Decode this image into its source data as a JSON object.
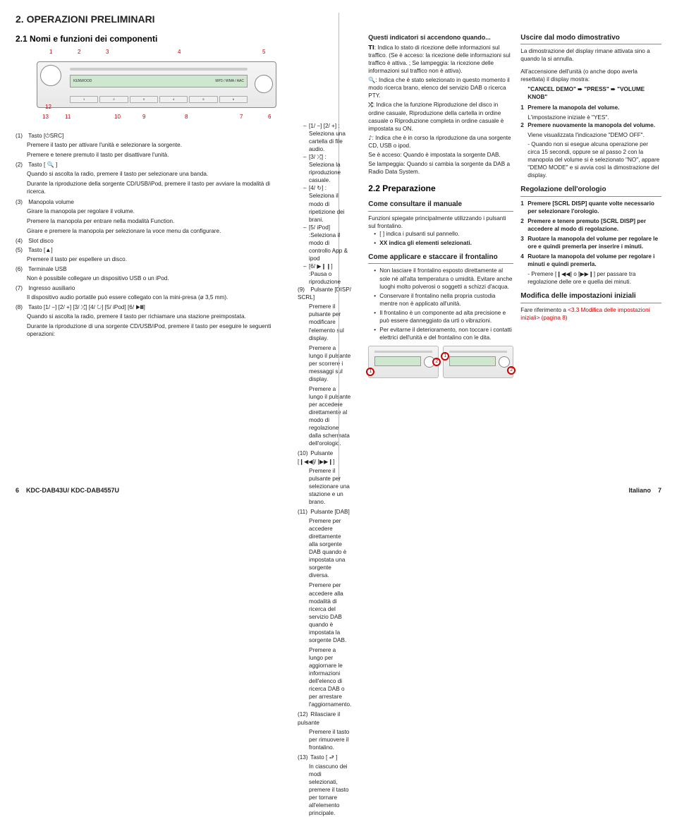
{
  "section_title": "2. OPERAZIONI PRELIMINARI",
  "sub1": "2.1 Nomi e funzioni dei componenti",
  "callouts_top": [
    "1",
    "2",
    "3",
    "4",
    "5"
  ],
  "callouts_bottom": [
    "13",
    "12",
    "11",
    "10",
    "9",
    "8",
    "7",
    "6"
  ],
  "display_left": "KENWOOD",
  "display_right": "MP3 / WMA / AAC",
  "buttons": [
    "1",
    "2",
    "3",
    "4",
    "5",
    "6"
  ],
  "items": [
    {
      "n": "(1)",
      "k": "Tasto [⏻SRC]",
      "d": [
        "Premere il tasto per attivare l'unità e selezionare la sorgente.",
        "Premere e tenere premuto il tasto per disattivare l'unità."
      ]
    },
    {
      "n": "(2)",
      "k": "Tasto [ 🔍 ]",
      "d": [
        "Quando si ascolta la radio, premere il tasto per selezionare una banda.",
        "Durante la riproduzione della sorgente CD/USB/iPod, premere il tasto per avviare la modalità di ricerca."
      ]
    },
    {
      "n": "(3)",
      "k": "Manopola volume",
      "d": [
        "Girare la manopola per regolare il volume.",
        "Premere la manopola per entrare nella modalità Function.",
        "Girare e premere la manopola per selezionare la voce menu da configurare."
      ]
    },
    {
      "n": "(4)",
      "k": "Slot disco",
      "d": []
    },
    {
      "n": "(5)",
      "k": "Tasto [▲]",
      "d": [
        "Premere il tasto per espellere un disco."
      ]
    },
    {
      "n": "(6)",
      "k": "Terminale USB",
      "d": [
        "Non è possibile collegare un dispositivo USB o un iPod."
      ]
    },
    {
      "n": "(7)",
      "k": "Ingresso ausiliario",
      "d": [
        "Il dispositivo audio portatile può essere collegato con la mini-presa (ø 3,5 mm)."
      ]
    },
    {
      "n": "(8)",
      "k": "Tasto [1/ −] [2/ +] [3/ ⤮] [4/ ↻] [5/ iPod] [6/ ▶❙❙]",
      "d": [
        "Quando si ascolta la radio, premere il tasto per richiamare una stazione preimpostata.",
        "Durante la riproduzione di una sorgente CD/USB/iPod, premere il tasto per eseguire le seguenti operazioni:"
      ]
    }
  ],
  "ops8": [
    "[1/ −] [2/ +] : Seleziona una cartella di file audio.",
    "[3/ ⤮] : Seleziona la riproduzione casuale.",
    "[4/ ↻] : Seleziona il modo di ripetizione dei brani.",
    "[5/ iPod] :Seleziona il modo di controllo App & ipod",
    "[6/ ▶❙❙] :Pausa o riproduzione"
  ],
  "items2": [
    {
      "n": "(9)",
      "k": "Pulsante [DISP/ SCRL]",
      "d": [
        "Premere il pulsante per modificare l'elemento sul display.",
        "Premere a lungo il pulsante per scorrere i messaggi sul display.",
        "Premere a lungo il pulsante per accedere direttamente al modo di regolazione dalla schermata dell'orologio."
      ]
    },
    {
      "n": "(10)",
      "k": "Pulsante [❙◀◀]/ [▶▶❙]",
      "d": [
        "Premere il pulsante per selezionare una stazione e un brano."
      ]
    },
    {
      "n": "(11)",
      "k": "Pulsante [DAB]",
      "d": [
        "Premere per accedere direttamente alla sorgente DAB quando è impostata una sorgente diversa.",
        "Premere per accedere alla modalità di ricerca del servizio DAB quando è impostata la sorgente DAB.",
        "Premere a lungo per aggiornare le informazioni dell'elenco di ricerca DAB o per arrestare l'aggiornamento."
      ]
    },
    {
      "n": "(12)",
      "k": "Rilasciare il pulsante",
      "d": [
        "Premere il tasto per rimuovere il frontalino."
      ]
    },
    {
      "n": "(13)",
      "k": "Tasto [ ⮐ ]",
      "d": [
        "In ciascuno dei modi selezionati, premere il tasto per tornare all'elemento principale."
      ]
    }
  ],
  "ind_title": "Questi indicatori si accendono quando...",
  "ind": [
    {
      "s": "TI",
      "t": ": Indica lo stato di ricezione delle informazioni sul traffico. (Se è acceso: la ricezione delle informazioni sul traffico è attiva. ; Se lampeggia: la ricezione delle informazioni sul traffico non è attiva)."
    },
    {
      "s": "🔍",
      "t": ": Indica che è stato selezionato in questo momento il modo ricerca brano, elenco del servizio DAB o ricerca PTY."
    },
    {
      "s": "⤮",
      "t": ": Indica che la funzione Riproduzione del disco in ordine casuale, Riproduzione della cartella in ordine casuale o Riproduzione completa in ordine casuale è impostata su ON."
    },
    {
      "s": "♪",
      "t": ": Indica che è in corso la riproduzione da una sorgente CD, USB o ipod."
    },
    {
      "s": "",
      "t": "Se è acceso: Quando è impostata la sorgente DAB."
    },
    {
      "s": "",
      "t": "Se lampeggia: Quando si cambia la sorgente da DAB a Radio Data System."
    }
  ],
  "prep_title": "2.2 Preparazione",
  "man_title": "Come consultare il manuale",
  "man_text": "Funzioni spiegate principalmente utilizzando i pulsanti sul frontalino.",
  "man_b1": "[ ] indica i pulsanti sul pannello.",
  "man_b2": "XX indica gli elementi selezionati.",
  "front_title": "Come applicare e staccare il frontalino",
  "front_b": [
    "Non lasciare il frontalino esposto direttamente al sole né all'alta temperatura o umidità. Evitare anche luoghi molto polverosi o soggetti a schizzi d'acqua.",
    "Conservare il frontalino nella propria custodia mentre non è applicato all'unità.",
    "Il frontalino è un componente ad alta precisione e può essere danneggiato da urti o vibrazioni.",
    "Per evitarne il deterioramento, non toccare i contatti elettrici dell'unità e del frontalino con le dita."
  ],
  "demo_title": "Uscire dal modo dimostrativo",
  "demo_text": "La dimostrazione del display rimane attivata sino a quando la si annulla.",
  "demo_text2": "All'accensione dell'unità (o anche dopo averla resettata) il display mostra:",
  "demo_chain": "\"CANCEL DEMO\" ➠ \"PRESS\" ➠ \"VOLUME KNOB\"",
  "demo_steps": [
    {
      "n": "1",
      "t": "Premere la manopola del volume.",
      "sub": "L'impostazione iniziale è \"YES\"."
    },
    {
      "n": "2",
      "t": "Premere nuovamente la manopola del volume.",
      "sub": "Viene visualizzata l'indicazione \"DEMO OFF\"."
    }
  ],
  "demo_note": "- Quando non si esegue alcuna operazione per circa 15 secondi, oppure se al passo 2 con la manopola del volume si è selezionato \"NO\", appare \"DEMO MODE\" e si avvia così la dimostrazione del display.",
  "clock_title": "Regolazione dell'orologio",
  "clock_steps": [
    {
      "n": "1",
      "t": "Premere [SCRL DISP] quante volte necessario per selezionare l'orologio."
    },
    {
      "n": "2",
      "t": "Premere e tenere premuto [SCRL DISP] per accedere al modo di regolazione."
    },
    {
      "n": "3",
      "t": "Ruotare la manopola del volume per regolare le ore e quindi premerla per inserire i minuti."
    },
    {
      "n": "4",
      "t": "Ruotare la manopola del volume per regolare i minuti e quindi premerla."
    }
  ],
  "clock_note": "- Premere [❙◀◀] o [▶▶❙] per passare tra regolazione delle ore e quella dei minuti.",
  "init_title": "Modifica delle impostazioni iniziali",
  "init_text": "Fare riferimento a ",
  "init_link": "<3.3 Modifica delle impostazioni iniziali> (pagina 8)",
  "footer_model": "KDC-DAB43U/ KDC-DAB4557U",
  "footer_pl": "6",
  "footer_lang": "Italiano",
  "footer_pr": "7"
}
